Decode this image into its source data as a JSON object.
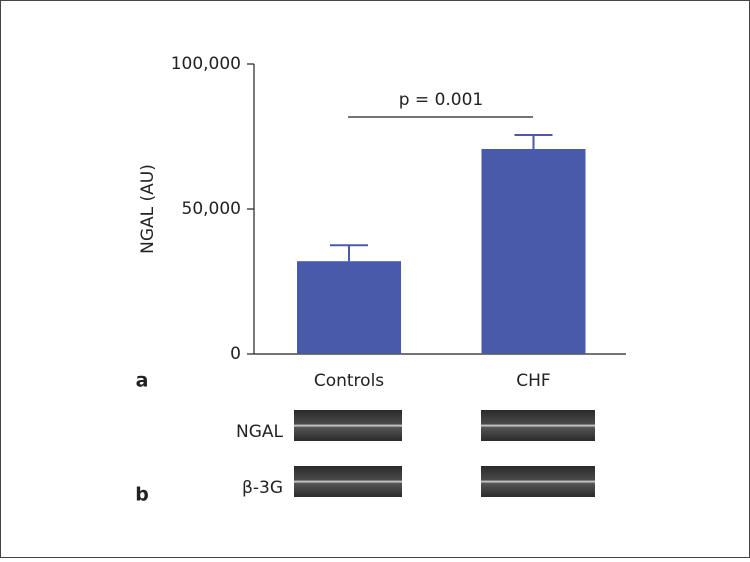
{
  "chart_data": {
    "type": "bar",
    "y_label": "NGAL (AU)",
    "categories": [
      "Controls",
      "CHF"
    ],
    "values": [
      32000,
      70700
    ],
    "errors": [
      5500,
      4800
    ],
    "color": "#4a5aab",
    "ylim": [
      0,
      100000
    ],
    "yticks": [
      0,
      {
        "value": 50000,
        "label": "50,000"
      },
      {
        "value": 100000,
        "label": "100,000"
      }
    ],
    "annotation": "p = 0.001",
    "panel_labels": [
      "a",
      "b"
    ],
    "blot_labels": [
      "NGAL",
      "β-3G"
    ]
  }
}
